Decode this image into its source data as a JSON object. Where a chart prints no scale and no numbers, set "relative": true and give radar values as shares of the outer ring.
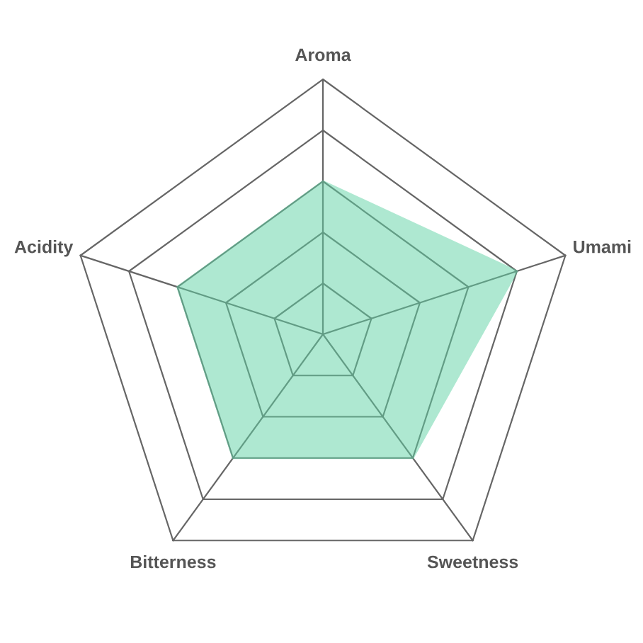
{
  "chart_data": {
    "type": "radar",
    "relative": true,
    "grid": true,
    "categories": [
      "Aroma",
      "Umami",
      "Sweetness",
      "Bitterness",
      "Acidity"
    ],
    "series": [
      {
        "color": "#5fd3a4",
        "values": [
          0.6,
          0.8,
          0.6,
          0.6,
          0.6
        ]
      }
    ]
  }
}
